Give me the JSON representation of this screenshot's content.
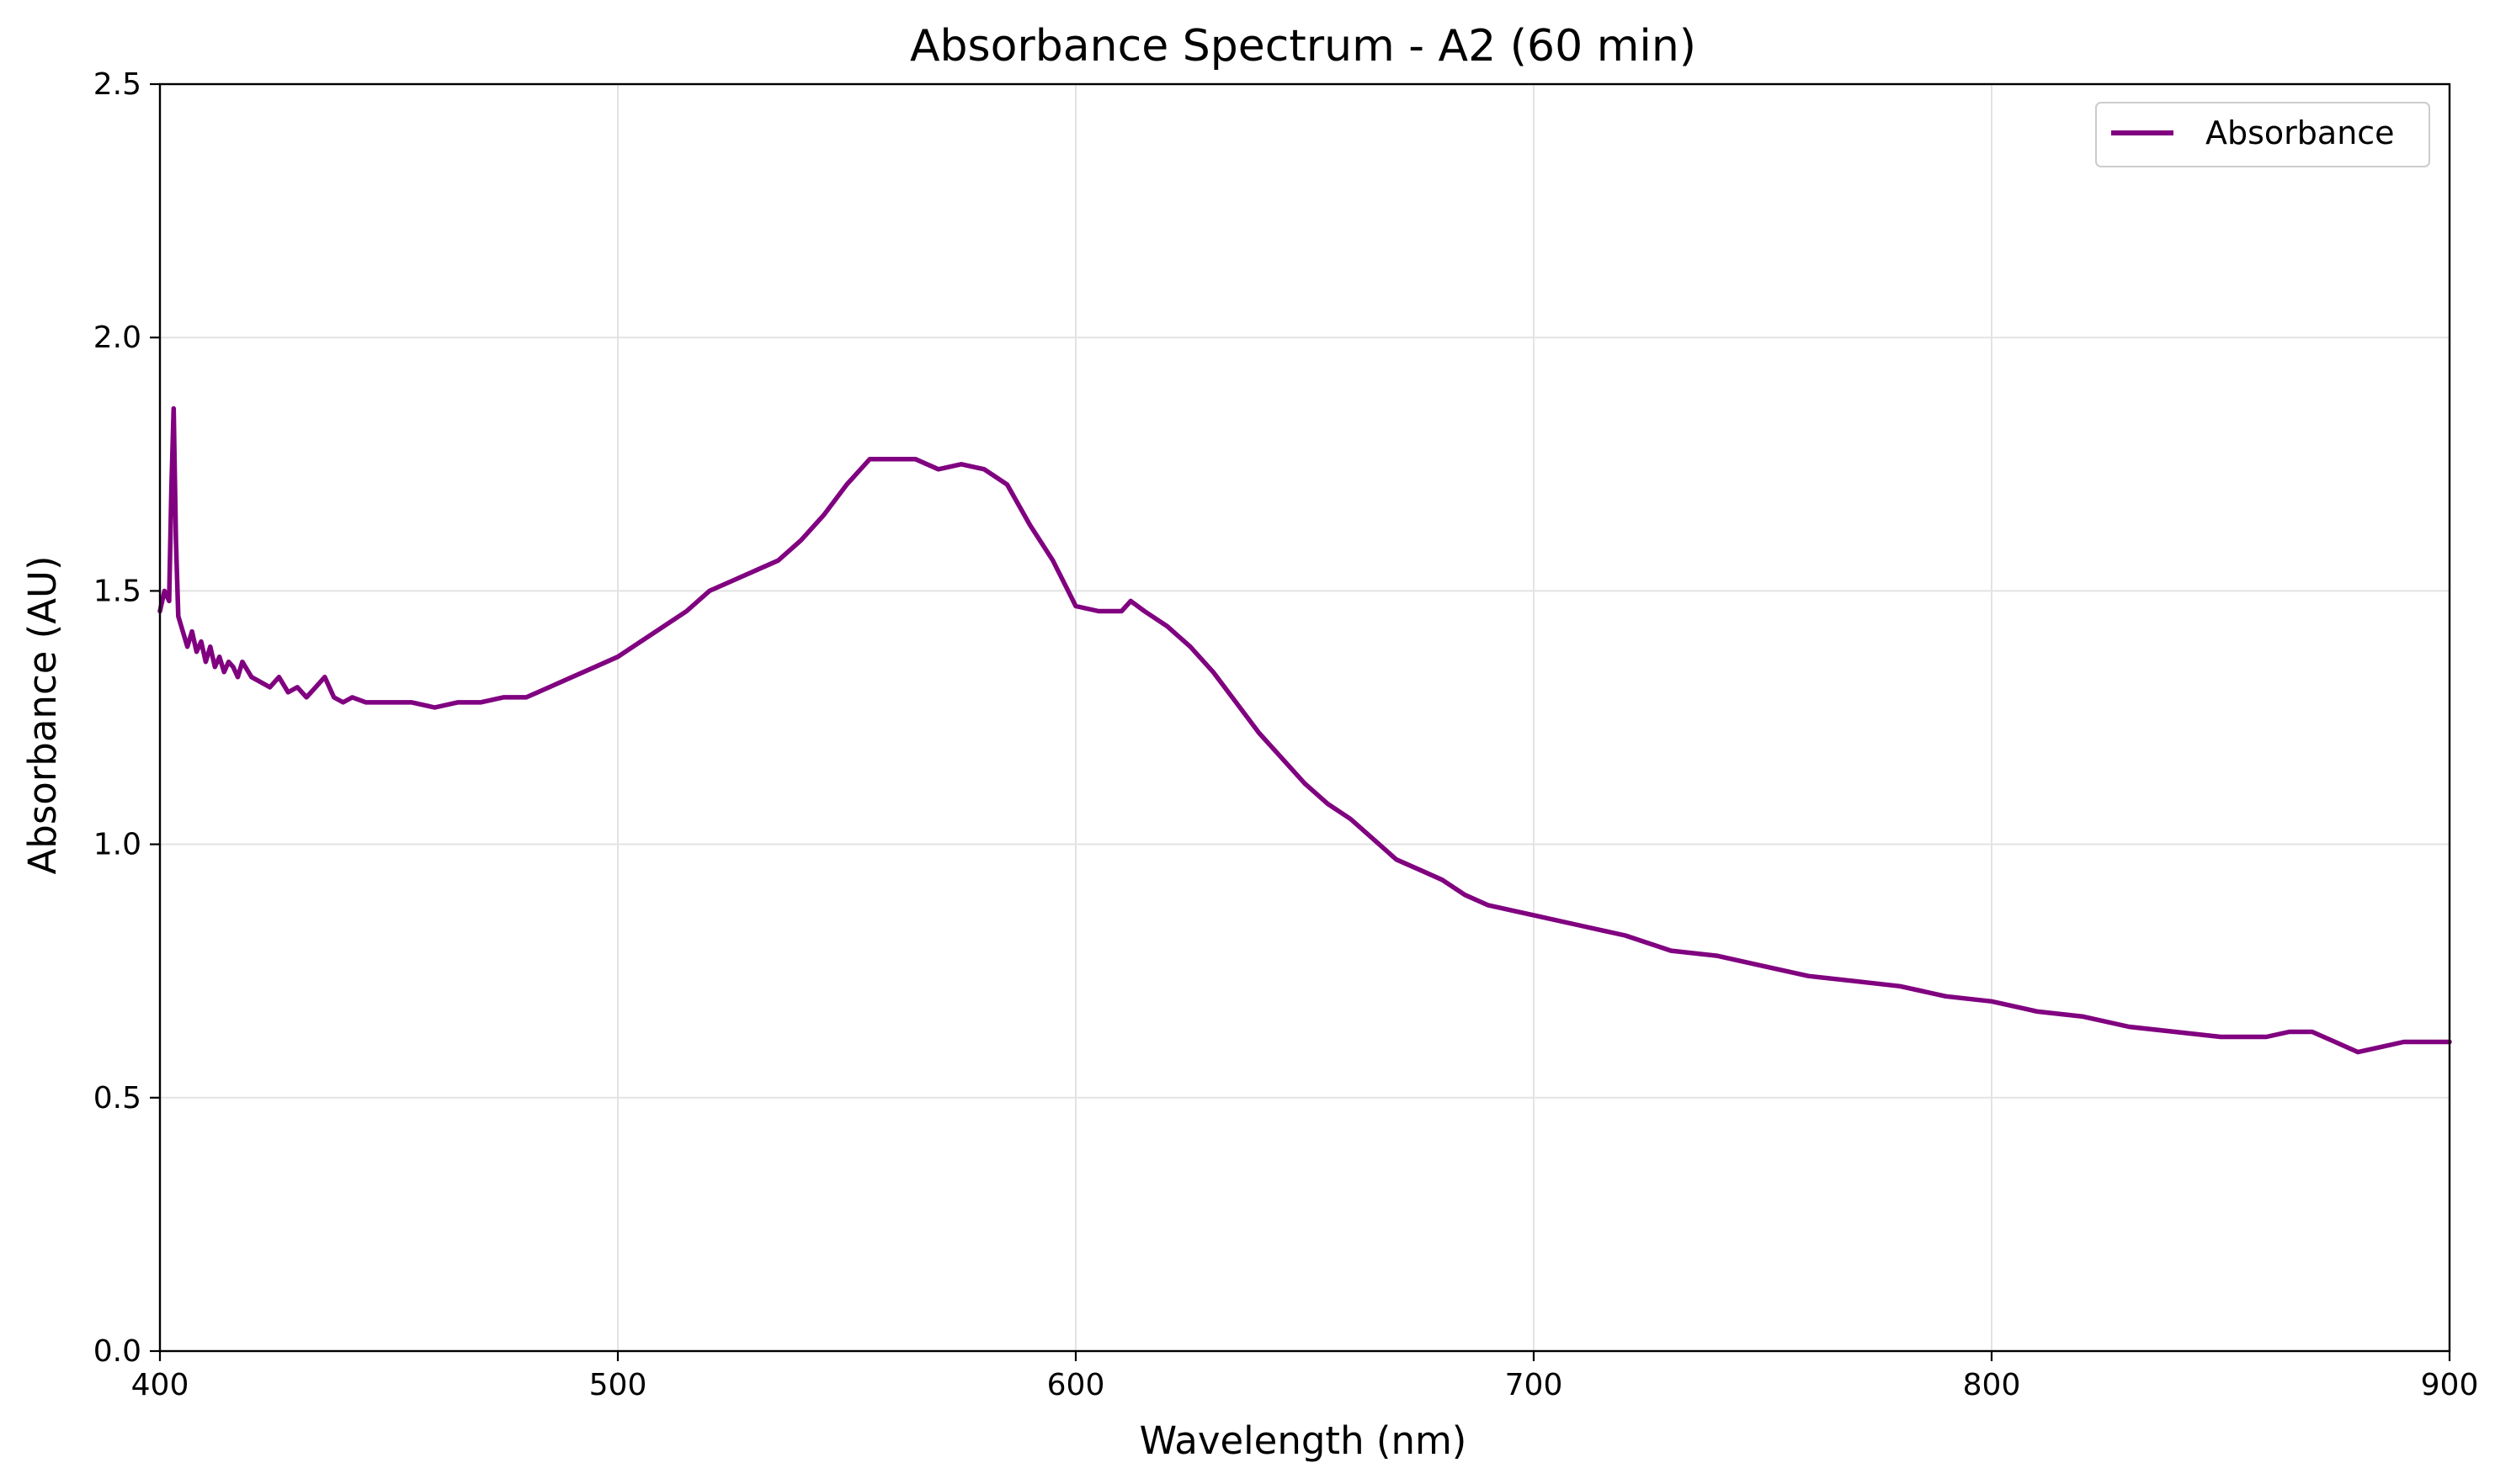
{
  "chart_data": {
    "type": "line",
    "title": "Absorbance Spectrum - A2 (60 min)",
    "xlabel": "Wavelength (nm)",
    "ylabel": "Absorbance (AU)",
    "xlim": [
      400,
      900
    ],
    "ylim": [
      0,
      2.5
    ],
    "xticks": [
      400,
      500,
      600,
      700,
      800,
      900
    ],
    "xtick_labels": [
      "400",
      "500",
      "600",
      "700",
      "800",
      "900"
    ],
    "yticks": [
      0,
      0.5,
      1.0,
      1.5,
      2.0,
      2.5
    ],
    "ytick_labels": [
      "0.0",
      "0.5",
      "1.0",
      "1.5",
      "2.0",
      "2.5"
    ],
    "grid": true,
    "legend": {
      "position": "top-right"
    },
    "series": [
      {
        "name": "Absorbance",
        "color": "#800080",
        "x": [
          400,
          401,
          402,
          402.5,
          403,
          403.5,
          404,
          405,
          406,
          407,
          408,
          409,
          410,
          411,
          412,
          413,
          414,
          415,
          416,
          417,
          418,
          420,
          422,
          424,
          426,
          428,
          430,
          432,
          434,
          436,
          438,
          440,
          442,
          445,
          450,
          455,
          460,
          465,
          470,
          475,
          480,
          485,
          490,
          495,
          500,
          505,
          510,
          515,
          520,
          525,
          530,
          535,
          540,
          545,
          550,
          555,
          560,
          565,
          570,
          575,
          580,
          585,
          590,
          595,
          600,
          605,
          610,
          612,
          615,
          620,
          625,
          630,
          635,
          640,
          645,
          650,
          655,
          660,
          665,
          670,
          675,
          680,
          685,
          690,
          695,
          700,
          710,
          720,
          730,
          740,
          750,
          760,
          770,
          780,
          790,
          800,
          810,
          820,
          830,
          840,
          850,
          860,
          865,
          870,
          875,
          880,
          885,
          890,
          895,
          900
        ],
        "y": [
          1.46,
          1.5,
          1.48,
          1.7,
          1.86,
          1.6,
          1.45,
          1.42,
          1.39,
          1.42,
          1.38,
          1.4,
          1.36,
          1.39,
          1.35,
          1.37,
          1.34,
          1.36,
          1.35,
          1.33,
          1.36,
          1.33,
          1.32,
          1.31,
          1.33,
          1.3,
          1.31,
          1.29,
          1.31,
          1.33,
          1.29,
          1.28,
          1.29,
          1.28,
          1.28,
          1.28,
          1.27,
          1.28,
          1.28,
          1.29,
          1.29,
          1.31,
          1.33,
          1.35,
          1.37,
          1.4,
          1.43,
          1.46,
          1.5,
          1.52,
          1.54,
          1.56,
          1.6,
          1.65,
          1.71,
          1.76,
          1.76,
          1.76,
          1.74,
          1.75,
          1.74,
          1.71,
          1.63,
          1.56,
          1.47,
          1.46,
          1.46,
          1.48,
          1.46,
          1.43,
          1.39,
          1.34,
          1.28,
          1.22,
          1.17,
          1.12,
          1.08,
          1.05,
          1.01,
          0.97,
          0.95,
          0.93,
          0.9,
          0.88,
          0.87,
          0.86,
          0.84,
          0.82,
          0.79,
          0.78,
          0.76,
          0.74,
          0.73,
          0.72,
          0.7,
          0.69,
          0.67,
          0.66,
          0.64,
          0.63,
          0.62,
          0.62,
          0.63,
          0.63,
          0.61,
          0.59,
          0.6,
          0.61,
          0.61,
          0.61
        ]
      }
    ]
  }
}
